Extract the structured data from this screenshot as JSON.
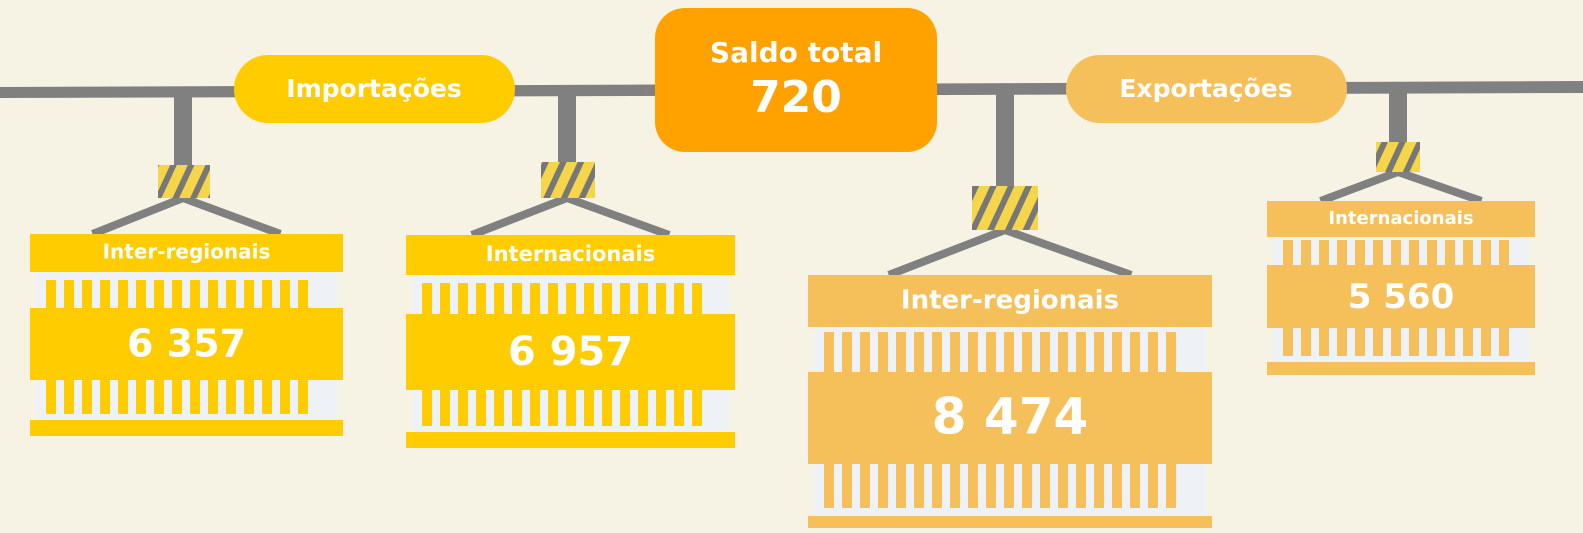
{
  "center": {
    "label": "Saldo total",
    "value": "720"
  },
  "groups": [
    {
      "label": "Importações",
      "containers": [
        {
          "label": "Inter-regionais",
          "value": "6 357"
        },
        {
          "label": "Internacionais",
          "value": "6 957"
        }
      ]
    },
    {
      "label": "Exportações",
      "containers": [
        {
          "label": "Inter-regionais",
          "value": "8 474"
        },
        {
          "label": "Internacionais",
          "value": "5 560"
        }
      ]
    }
  ]
}
